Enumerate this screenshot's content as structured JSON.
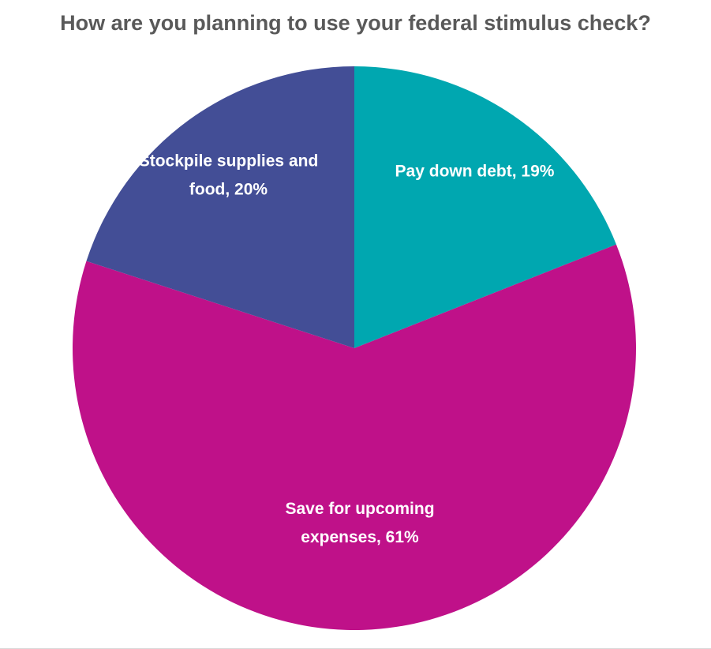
{
  "chart_data": {
    "type": "pie",
    "title": "How are you planning to use your federal stimulus check?",
    "start_angle_deg": 0,
    "direction": "clockwise",
    "slices": [
      {
        "category": "Pay down debt",
        "value": 19,
        "label_lines": [
          "Pay down debt, 19%"
        ],
        "color": "#00A7B0"
      },
      {
        "category": "Save for upcoming expenses",
        "value": 61,
        "label_lines": [
          "Save for upcoming",
          "expenses, 61%"
        ],
        "color": "#BF1189"
      },
      {
        "category": "Stockpile supplies and food",
        "value": 20,
        "label_lines": [
          "Stockpile supplies and",
          "food, 20%"
        ],
        "color": "#434E96"
      }
    ]
  }
}
